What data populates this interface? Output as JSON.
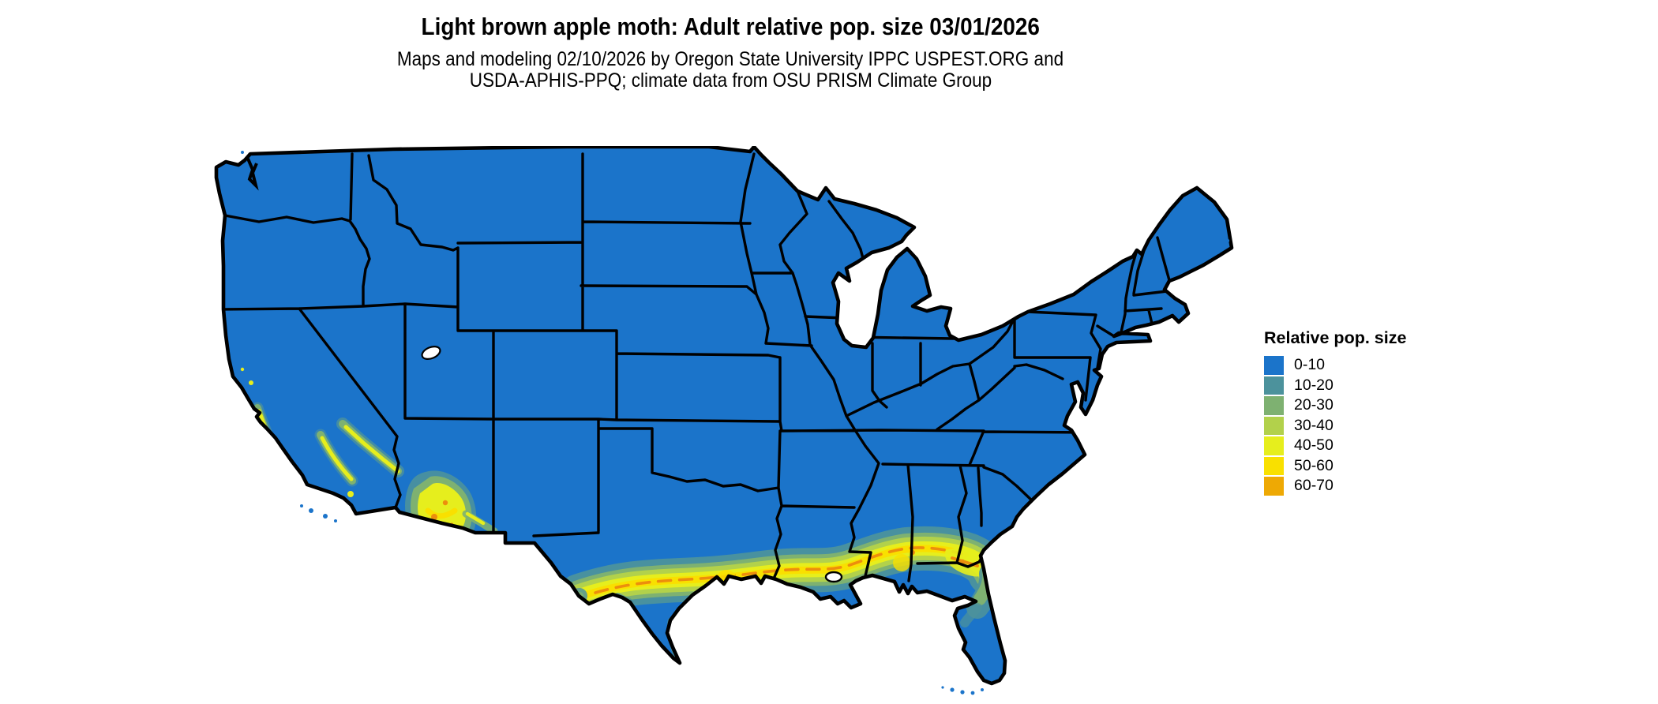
{
  "header": {
    "title": "Light brown apple moth: Adult relative pop. size 03/01/2026",
    "subtitle_line1": "Maps and modeling 02/10/2026 by Oregon State University IPPC USPEST.ORG and",
    "subtitle_line2": "USDA-APHIS-PPQ; climate data from OSU PRISM Climate Group"
  },
  "legend": {
    "title": "Relative pop. size",
    "items": [
      {
        "label": "0-10",
        "color": "#1B74CA"
      },
      {
        "label": "10-20",
        "color": "#4C929C"
      },
      {
        "label": "20-30",
        "color": "#7EB171"
      },
      {
        "label": "30-40",
        "color": "#B2D14B"
      },
      {
        "label": "40-50",
        "color": "#E6EE1D"
      },
      {
        "label": "50-60",
        "color": "#F9E000"
      },
      {
        "label": "60-70",
        "color": "#EEA904"
      }
    ]
  },
  "palette": {
    "blue": "#1B74CA",
    "teal": "#4C929C",
    "green": "#7EB171",
    "yellowgreen": "#B2D14B",
    "yellow": "#E6EE1D",
    "gold": "#F9E000",
    "orange": "#EEA904",
    "deeporange": "#EC8E0D",
    "border": "#000000",
    "water": "#FFFFFF"
  },
  "map": {
    "region": "Contiguous United States",
    "value_classes": [
      "0-10",
      "10-20",
      "20-30",
      "30-40",
      "40-50",
      "50-60",
      "60-70"
    ],
    "dominant_class": "0-10",
    "elevated_regions": [
      "Gulf Coast band from central Texas through Louisiana, Mississippi, Alabama into southern Georgia and north Florida",
      "Central and southern Arizona",
      "Southern California coast and foothills"
    ]
  }
}
